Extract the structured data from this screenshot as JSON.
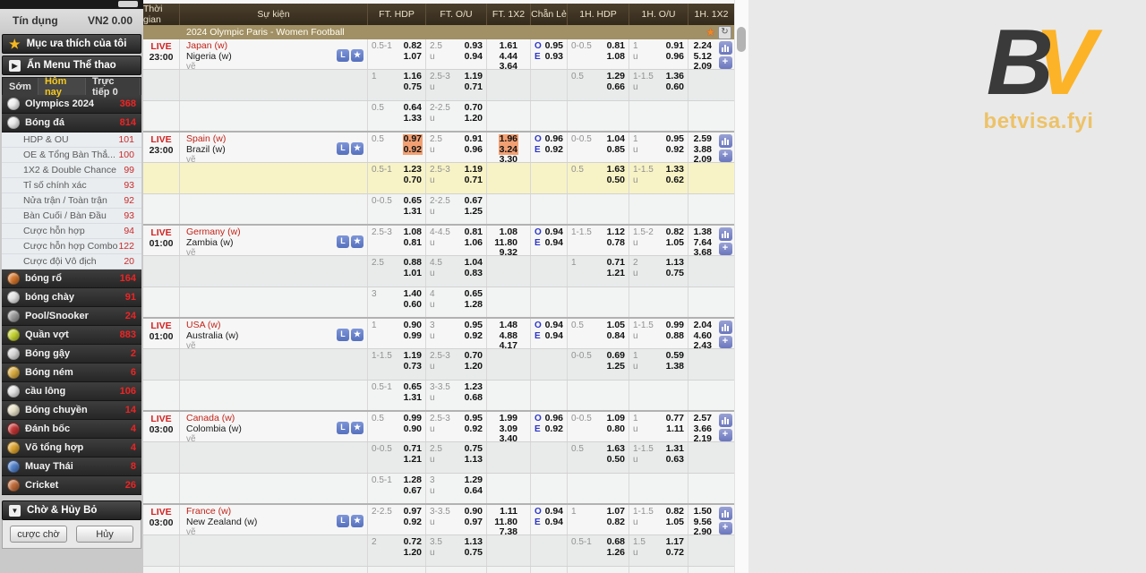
{
  "colors": {
    "accent_yellow": "#f5c81e",
    "brand_gold": "#fcb327",
    "live_red": "#d42222",
    "count_red": "#ee2424",
    "odds_highlight": "#f2a073",
    "row_highlight": "#f7f3c6",
    "header_brown": "#3f3524",
    "league_khaki": "#a19065"
  },
  "logo": {
    "b": "B",
    "v": "V",
    "domain": "betvisa.fyi"
  },
  "sidebar": {
    "credit_label": "Tín dụng",
    "credit_value": "VN2 0.00",
    "favorites_label": "Mục ưa thích của tôi",
    "hide_menu_label": "Ẩn Menu Thể thao",
    "tabs": [
      {
        "label": "Sớm",
        "active": false
      },
      {
        "label": "Hôm nay",
        "active": true
      },
      {
        "label": "Trực tiếp 0",
        "active": false
      }
    ],
    "sports": [
      {
        "label": "Olympics 2024",
        "count": "368",
        "icon": "olympics-icon",
        "color": "#f0f0f0"
      },
      {
        "label": "Bóng đá",
        "count": "814",
        "icon": "football-icon",
        "color": "#ececec",
        "children": [
          {
            "label": "HDP & OU",
            "count": "101"
          },
          {
            "label": "OE & Tổng Bàn Thắ...",
            "count": "100"
          },
          {
            "label": "1X2 & Double Chance",
            "count": "99"
          },
          {
            "label": "Tỉ số chính xác",
            "count": "93"
          },
          {
            "label": "Nửa trận / Toàn trận",
            "count": "92"
          },
          {
            "label": "Bàn Cuối / Bàn Đầu",
            "count": "93"
          },
          {
            "label": "Cược hỗn hợp",
            "count": "94"
          },
          {
            "label": "Cược hỗn hợp Combo",
            "count": "122"
          },
          {
            "label": "Cược đội Vô địch",
            "count": "20"
          }
        ]
      },
      {
        "label": "bóng rổ",
        "count": "164",
        "icon": "basketball-icon",
        "color": "#d4742a"
      },
      {
        "label": "bóng chày",
        "count": "91",
        "icon": "baseball-icon",
        "color": "#e4e4e4"
      },
      {
        "label": "Pool/Snooker",
        "count": "24",
        "icon": "snooker-icon",
        "color": "#9a9a9a"
      },
      {
        "label": "Quần vợt",
        "count": "883",
        "icon": "tennis-icon",
        "color": "#c3d32c"
      },
      {
        "label": "Bóng gậy",
        "count": "2",
        "icon": "stick-ball-icon",
        "color": "#d8d8d8"
      },
      {
        "label": "Bóng ném",
        "count": "6",
        "icon": "handball-icon",
        "color": "#d9aa3c"
      },
      {
        "label": "cầu lông",
        "count": "106",
        "icon": "badminton-icon",
        "color": "#e6e6e6"
      },
      {
        "label": "Bóng chuyền",
        "count": "14",
        "icon": "volleyball-icon",
        "color": "#e8e2c8"
      },
      {
        "label": "Đánh bốc",
        "count": "4",
        "icon": "boxing-icon",
        "color": "#c23333"
      },
      {
        "label": "Võ tổng hợp",
        "count": "4",
        "icon": "mma-icon",
        "color": "#dca22c"
      },
      {
        "label": "Muay Thái",
        "count": "8",
        "icon": "muay-thai-icon",
        "color": "#4f7fc9"
      },
      {
        "label": "Cricket",
        "count": "26",
        "icon": "cricket-icon",
        "color": "#c06a38"
      }
    ],
    "pending": {
      "title": "Chờ & Hủy Bỏ",
      "wait_button": "cược chờ",
      "cancel_button": "Hủy"
    }
  },
  "table": {
    "headers": [
      "Thời gian",
      "Sự kiện",
      "FT. HDP",
      "FT. O/U",
      "FT. 1X2",
      "Chẵn Lẻ",
      "1H. HDP",
      "1H. O/U",
      "1H. 1X2"
    ],
    "league_title": "2024 Olympic Paris - Women Football",
    "under_label": "u",
    "odd_letter": "O",
    "even_letter": "E",
    "event_icons": {
      "live_stream": "L",
      "favorite_star": "★"
    },
    "matches": [
      {
        "live": "LIVE",
        "time": "23:00",
        "home": "Japan (w)",
        "away": "Nigeria (w)",
        "draw": "vẽ",
        "rows": [
          {
            "ft_hdp": {
              "line": "0.5-1",
              "a": "0.82",
              "b": "1.07"
            },
            "ft_ou": {
              "line": "2.5",
              "o": "0.93",
              "u": "0.94"
            },
            "ft_1x2": [
              "1.61",
              "4.44",
              "3.64"
            ],
            "oe": {
              "o": "0.95",
              "e": "0.93"
            },
            "h1_hdp": {
              "line": "0-0.5",
              "a": "0.81",
              "b": "1.08"
            },
            "h1_ou": {
              "line": "1",
              "o": "0.91",
              "u": "0.96"
            },
            "h1_1x2": [
              "2.24",
              "5.12",
              "2.09"
            ]
          },
          {
            "ft_hdp": {
              "line": "1",
              "a": "1.16",
              "b": "0.75"
            },
            "ft_ou": {
              "line": "2.5-3",
              "o": "1.19",
              "u": "0.71"
            },
            "h1_hdp": {
              "line": "0.5",
              "a": "1.29",
              "b": "0.66"
            },
            "h1_ou": {
              "line": "1-1.5",
              "o": "1.36",
              "u": "0.60"
            }
          },
          {
            "ft_hdp": {
              "line": "0.5",
              "a": "0.64",
              "b": "1.33"
            },
            "ft_ou": {
              "line": "2-2.5",
              "o": "0.70",
              "u": "1.20"
            }
          }
        ]
      },
      {
        "live": "LIVE",
        "time": "23:00",
        "home": "Spain (w)",
        "away": "Brazil (w)",
        "draw": "vẽ",
        "rows": [
          {
            "ft_hdp": {
              "line": "0.5",
              "a": "0.97",
              "b": "0.92",
              "hlA": true,
              "hlB": true
            },
            "ft_ou": {
              "line": "2.5",
              "o": "0.91",
              "u": "0.96"
            },
            "ft_1x2": [
              "1.96",
              "3.24",
              "3.30"
            ],
            "ft_1x2_hl": [
              true,
              true,
              false
            ],
            "oe": {
              "o": "0.96",
              "e": "0.92"
            },
            "h1_hdp": {
              "line": "0-0.5",
              "a": "1.04",
              "b": "0.85"
            },
            "h1_ou": {
              "line": "1",
              "o": "0.95",
              "u": "0.92"
            },
            "h1_1x2": [
              "2.59",
              "3.88",
              "2.09"
            ]
          },
          {
            "yellow": true,
            "ft_hdp": {
              "line": "0.5-1",
              "a": "1.23",
              "b": "0.70"
            },
            "ft_ou": {
              "line": "2.5-3",
              "o": "1.19",
              "u": "0.71"
            },
            "h1_hdp": {
              "line": "0.5",
              "a": "1.63",
              "b": "0.50"
            },
            "h1_ou": {
              "line": "1-1.5",
              "o": "1.33",
              "u": "0.62"
            }
          },
          {
            "ft_hdp": {
              "line": "0-0.5",
              "a": "0.65",
              "b": "1.31"
            },
            "ft_ou": {
              "line": "2-2.5",
              "o": "0.67",
              "u": "1.25"
            }
          }
        ]
      },
      {
        "live": "LIVE",
        "time": "01:00",
        "home": "Germany (w)",
        "away": "Zambia (w)",
        "draw": "vẽ",
        "rows": [
          {
            "ft_hdp": {
              "line": "2.5-3",
              "a": "1.08",
              "b": "0.81"
            },
            "ft_ou": {
              "line": "4-4.5",
              "o": "0.81",
              "u": "1.06"
            },
            "ft_1x2": [
              "1.08",
              "11.80",
              "9.32"
            ],
            "oe": {
              "o": "0.94",
              "e": "0.94"
            },
            "h1_hdp": {
              "line": "1-1.5",
              "a": "1.12",
              "b": "0.78"
            },
            "h1_ou": {
              "line": "1.5-2",
              "o": "0.82",
              "u": "1.05"
            },
            "h1_1x2": [
              "1.38",
              "7.64",
              "3.68"
            ]
          },
          {
            "ft_hdp": {
              "line": "2.5",
              "a": "0.88",
              "b": "1.01"
            },
            "ft_ou": {
              "line": "4.5",
              "o": "1.04",
              "u": "0.83"
            },
            "h1_hdp": {
              "line": "1",
              "a": "0.71",
              "b": "1.21"
            },
            "h1_ou": {
              "line": "2",
              "o": "1.13",
              "u": "0.75"
            }
          },
          {
            "ft_hdp": {
              "line": "3",
              "a": "1.40",
              "b": "0.60"
            },
            "ft_ou": {
              "line": "4",
              "o": "0.65",
              "u": "1.28"
            }
          }
        ]
      },
      {
        "live": "LIVE",
        "time": "01:00",
        "home": "USA (w)",
        "away": "Australia (w)",
        "draw": "vẽ",
        "rows": [
          {
            "ft_hdp": {
              "line": "1",
              "a": "0.90",
              "b": "0.99"
            },
            "ft_ou": {
              "line": "3",
              "o": "0.95",
              "u": "0.92"
            },
            "ft_1x2": [
              "1.48",
              "4.88",
              "4.17"
            ],
            "oe": {
              "o": "0.94",
              "e": "0.94"
            },
            "h1_hdp": {
              "line": "0.5",
              "a": "1.05",
              "b": "0.84"
            },
            "h1_ou": {
              "line": "1-1.5",
              "o": "0.99",
              "u": "0.88"
            },
            "h1_1x2": [
              "2.04",
              "4.60",
              "2.43"
            ]
          },
          {
            "ft_hdp": {
              "line": "1-1.5",
              "a": "1.19",
              "b": "0.73"
            },
            "ft_ou": {
              "line": "2.5-3",
              "o": "0.70",
              "u": "1.20"
            },
            "h1_hdp": {
              "line": "0-0.5",
              "a": "0.69",
              "b": "1.25"
            },
            "h1_ou": {
              "line": "1",
              "o": "0.59",
              "u": "1.38"
            }
          },
          {
            "ft_hdp": {
              "line": "0.5-1",
              "a": "0.65",
              "b": "1.31"
            },
            "ft_ou": {
              "line": "3-3.5",
              "o": "1.23",
              "u": "0.68"
            }
          }
        ]
      },
      {
        "live": "LIVE",
        "time": "03:00",
        "home": "Canada (w)",
        "away": "Colombia (w)",
        "draw": "vẽ",
        "rows": [
          {
            "ft_hdp": {
              "line": "0.5",
              "a": "0.99",
              "b": "0.90"
            },
            "ft_ou": {
              "line": "2.5-3",
              "o": "0.95",
              "u": "0.92"
            },
            "ft_1x2": [
              "1.99",
              "3.09",
              "3.40"
            ],
            "oe": {
              "o": "0.96",
              "e": "0.92"
            },
            "h1_hdp": {
              "line": "0-0.5",
              "a": "1.09",
              "b": "0.80"
            },
            "h1_ou": {
              "line": "1",
              "o": "0.77",
              "u": "1.11"
            },
            "h1_1x2": [
              "2.57",
              "3.66",
              "2.19"
            ]
          },
          {
            "ft_hdp": {
              "line": "0-0.5",
              "a": "0.71",
              "b": "1.21"
            },
            "ft_ou": {
              "line": "2.5",
              "o": "0.75",
              "u": "1.13"
            },
            "h1_hdp": {
              "line": "0.5",
              "a": "1.63",
              "b": "0.50"
            },
            "h1_ou": {
              "line": "1-1.5",
              "o": "1.31",
              "u": "0.63"
            }
          },
          {
            "ft_hdp": {
              "line": "0.5-1",
              "a": "1.28",
              "b": "0.67"
            },
            "ft_ou": {
              "line": "3",
              "o": "1.29",
              "u": "0.64"
            }
          }
        ]
      },
      {
        "live": "LIVE",
        "time": "03:00",
        "home": "France (w)",
        "away": "New Zealand (w)",
        "draw": "vẽ",
        "rows": [
          {
            "ft_hdp": {
              "line": "2-2.5",
              "a": "0.97",
              "b": "0.92"
            },
            "ft_ou": {
              "line": "3-3.5",
              "o": "0.90",
              "u": "0.97"
            },
            "ft_1x2": [
              "1.11",
              "11.80",
              "7.38"
            ],
            "oe": {
              "o": "0.94",
              "e": "0.94"
            },
            "h1_hdp": {
              "line": "1",
              "a": "1.07",
              "b": "0.82"
            },
            "h1_ou": {
              "line": "1-1.5",
              "o": "0.82",
              "u": "1.05"
            },
            "h1_1x2": [
              "1.50",
              "9.56",
              "2.90"
            ]
          },
          {
            "ft_hdp": {
              "line": "2",
              "a": "0.72",
              "b": "1.20"
            },
            "ft_ou": {
              "line": "3.5",
              "o": "1.13",
              "u": "0.75"
            },
            "h1_hdp": {
              "line": "0.5-1",
              "a": "0.68",
              "b": "1.26"
            },
            "h1_ou": {
              "line": "1.5",
              "o": "1.17",
              "u": "0.72"
            }
          },
          {}
        ]
      }
    ]
  }
}
